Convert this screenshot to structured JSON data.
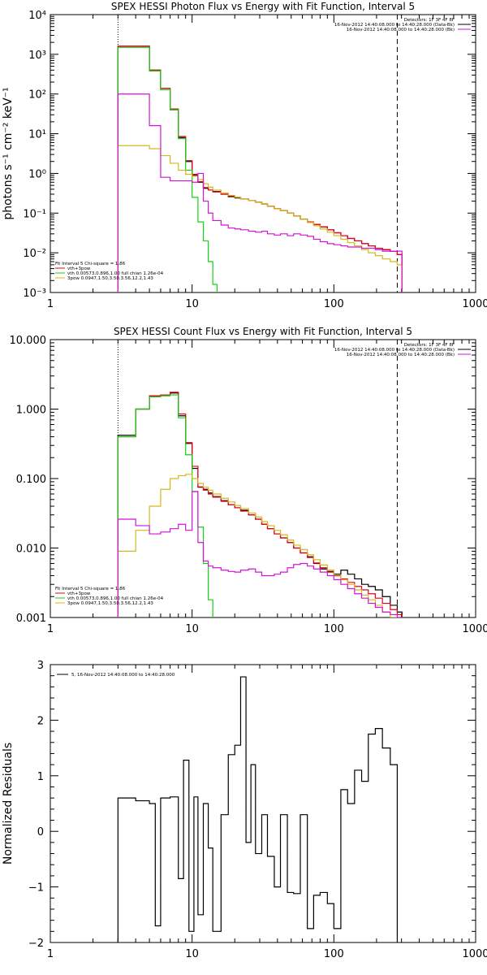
{
  "colors": {
    "black": "#000000",
    "red": "#e8001c",
    "green": "#15d215",
    "yellow": "#d6b81a",
    "magenta": "#d214d6"
  },
  "chart_data": [
    {
      "type": "line",
      "title": "SPEX HESSI Photon Flux vs Energy with Fit Function, Interval 5",
      "ylabel": "photons s⁻¹ cm⁻² keV⁻¹",
      "xlabel": "",
      "xscale": "log",
      "yscale": "log",
      "xlim": [
        1,
        1000
      ],
      "ylim": [
        0.001,
        10000
      ],
      "x_ticks": [
        "1",
        "10",
        "100",
        "1000"
      ],
      "y_ticks": [
        "10⁻³",
        "10⁻²",
        "10⁻¹",
        "10⁰",
        "10¹",
        "10²",
        "10³",
        "10⁴"
      ],
      "vlines": [
        {
          "x": 3,
          "style": "dotted"
        },
        {
          "x": 280,
          "style": "dashed"
        }
      ],
      "annotations_top_right": [
        "Detectors: 1F 3F 4F 8F",
        "16-Nov-2012 14:40:08.000 to 14:40:28.000 (Data-Bk)",
        "16-Nov-2012 14:40:08.000 to 14:40:28.000 (Bk)"
      ],
      "legend": {
        "position": "bottom-left",
        "header": "Fit Interval 5   Chi-square = 1.86",
        "entries": [
          {
            "label": "vth+3pow",
            "color": "#e8001c"
          },
          {
            "label": "vth 0.00573,0.896,1.00   full chian 1.26e-04",
            "color": "#15d215"
          },
          {
            "label": "3pow 0.0947,1.50,3.50,3.56,12.2,1.43",
            "color": "#d6b81a"
          }
        ]
      },
      "series": [
        {
          "name": "",
          "color": "#000000",
          "x": [
            3,
            4,
            5,
            6,
            7,
            8,
            9,
            10,
            11,
            12,
            13,
            14,
            16,
            18,
            20,
            22,
            25,
            28,
            31,
            34,
            38,
            42,
            47,
            52,
            58,
            65,
            72,
            80,
            90,
            100,
            112,
            125,
            140,
            157,
            175,
            196,
            220,
            250,
            280
          ],
          "y": [
            1600,
            1600,
            400,
            130,
            40,
            8,
            2.0,
            0.9,
            0.6,
            0.42,
            0.38,
            0.35,
            0.3,
            0.26,
            0.24,
            0.23,
            0.21,
            0.19,
            0.17,
            0.15,
            0.13,
            0.115,
            0.1,
            0.085,
            0.07,
            0.06,
            0.052,
            0.045,
            0.038,
            0.032,
            0.027,
            0.023,
            0.02,
            0.017,
            0.015,
            0.013,
            0.012,
            0.011,
            0.009
          ]
        },
        {
          "name": "vth+3pow",
          "color": "#e8001c",
          "x": [
            3,
            4,
            5,
            6,
            7,
            8,
            9,
            10,
            11,
            12,
            13,
            14,
            16,
            18,
            20,
            22,
            25,
            28,
            31,
            34,
            38,
            42,
            47,
            52,
            58,
            65,
            72,
            80,
            90,
            100,
            112,
            125,
            140,
            157,
            175,
            196,
            220,
            250,
            280
          ],
          "y": [
            1600,
            1600,
            400,
            140,
            42,
            8.5,
            2.1,
            0.95,
            0.62,
            0.44,
            0.38,
            0.34,
            0.3,
            0.27,
            0.25,
            0.23,
            0.21,
            0.19,
            0.17,
            0.15,
            0.13,
            0.115,
            0.1,
            0.085,
            0.07,
            0.06,
            0.052,
            0.045,
            0.038,
            0.032,
            0.027,
            0.023,
            0.02,
            0.017,
            0.015,
            0.013,
            0.012,
            0.011,
            0.009
          ]
        },
        {
          "name": "vth",
          "color": "#15d215",
          "x": [
            3,
            4,
            5,
            6,
            7,
            8,
            9,
            10,
            11,
            12,
            13,
            14,
            15
          ],
          "y": [
            1500,
            1500,
            380,
            130,
            40,
            7.5,
            1.2,
            0.25,
            0.06,
            0.02,
            0.006,
            0.0016,
            0.0007
          ]
        },
        {
          "name": "3pow",
          "color": "#d6b81a",
          "x": [
            3,
            4,
            5,
            6,
            7,
            8,
            9,
            10,
            11,
            12,
            13,
            14,
            16,
            18,
            20,
            22,
            25,
            28,
            31,
            34,
            38,
            42,
            47,
            52,
            58,
            65,
            72,
            80,
            90,
            100,
            112,
            125,
            140,
            157,
            175,
            196,
            220,
            250,
            280
          ],
          "y": [
            5,
            5,
            4.2,
            2.8,
            1.8,
            1.2,
            0.95,
            0.85,
            0.7,
            0.55,
            0.45,
            0.38,
            0.32,
            0.28,
            0.25,
            0.23,
            0.21,
            0.19,
            0.17,
            0.15,
            0.13,
            0.115,
            0.1,
            0.085,
            0.07,
            0.058,
            0.048,
            0.04,
            0.033,
            0.027,
            0.022,
            0.018,
            0.015,
            0.012,
            0.01,
            0.0085,
            0.007,
            0.006,
            0.005
          ]
        },
        {
          "name": "",
          "color": "#d214d6",
          "x": [
            3,
            4,
            5,
            6,
            7,
            8,
            9,
            10,
            11,
            12,
            13,
            14,
            16,
            18,
            20,
            22,
            25,
            28,
            31,
            34,
            38,
            42,
            47,
            52,
            58,
            65,
            72,
            80,
            90,
            100,
            112,
            125,
            140,
            157,
            175,
            196,
            220,
            250,
            280
          ],
          "y": [
            100,
            100,
            16,
            0.8,
            0.65,
            0.65,
            0.65,
            0.6,
            1.0,
            0.2,
            0.1,
            0.065,
            0.05,
            0.042,
            0.04,
            0.038,
            0.035,
            0.033,
            0.035,
            0.03,
            0.028,
            0.03,
            0.027,
            0.03,
            0.028,
            0.026,
            0.022,
            0.019,
            0.017,
            0.016,
            0.015,
            0.014,
            0.014,
            0.013,
            0.013,
            0.012,
            0.011,
            0.011,
            0.011
          ]
        }
      ]
    },
    {
      "type": "line",
      "title": "SPEX HESSI Count Flux vs Energy with Fit Function, Interval 5",
      "ylabel": "",
      "xlabel": "",
      "xscale": "log",
      "yscale": "log",
      "xlim": [
        1,
        1000
      ],
      "ylim": [
        0.001,
        10
      ],
      "x_ticks": [
        "1",
        "10",
        "100",
        "1000"
      ],
      "y_ticks": [
        "0.001",
        "0.010",
        "0.100",
        "1.000",
        "10.000"
      ],
      "vlines": [
        {
          "x": 3,
          "style": "dotted"
        },
        {
          "x": 280,
          "style": "dashed"
        }
      ],
      "annotations_top_right": [
        "Detectors: 1F 3F 4F 8F",
        "16-Nov-2012 14:40:08.000 to 14:40:28.000 (Data-Bk)",
        "16-Nov-2012 14:40:08.000 to 14:40:28.000 (Bk)"
      ],
      "legend": {
        "position": "bottom-left",
        "header": "Fit Interval 5   Chi-square = 1.86",
        "entries": [
          {
            "label": "vth+3pow",
            "color": "#e8001c"
          },
          {
            "label": "vth 0.00573,0.896,1.00   full chian 1.26e-04",
            "color": "#15d215"
          },
          {
            "label": "3pow 0.0947,1.50,3.50,3.56,12.2,1.43",
            "color": "#d6b81a"
          }
        ]
      },
      "series": [
        {
          "name": "",
          "color": "#000000",
          "x": [
            3,
            4,
            5,
            6,
            7,
            8,
            9,
            10,
            11,
            12,
            13,
            14,
            16,
            18,
            20,
            22,
            25,
            28,
            31,
            34,
            38,
            42,
            47,
            52,
            58,
            65,
            72,
            80,
            90,
            100,
            112,
            125,
            140,
            157,
            175,
            196,
            220,
            250,
            280
          ],
          "y": [
            0.42,
            1.0,
            1.55,
            1.6,
            1.7,
            0.8,
            0.32,
            0.14,
            0.075,
            0.07,
            0.062,
            0.055,
            0.048,
            0.042,
            0.038,
            0.035,
            0.03,
            0.026,
            0.022,
            0.019,
            0.016,
            0.014,
            0.012,
            0.01,
            0.0085,
            0.0075,
            0.006,
            0.005,
            0.0046,
            0.0042,
            0.0048,
            0.0042,
            0.0036,
            0.003,
            0.0028,
            0.0025,
            0.002,
            0.0015,
            0.0012
          ]
        },
        {
          "name": "vth+3pow",
          "color": "#e8001c",
          "x": [
            3,
            4,
            5,
            6,
            7,
            8,
            9,
            10,
            11,
            12,
            13,
            14,
            16,
            18,
            20,
            22,
            25,
            28,
            31,
            34,
            38,
            42,
            47,
            52,
            58,
            65,
            72,
            80,
            90,
            100,
            112,
            125,
            140,
            157,
            175,
            196,
            220,
            250,
            280
          ],
          "y": [
            0.4,
            1.0,
            1.55,
            1.6,
            1.75,
            0.85,
            0.33,
            0.15,
            0.076,
            0.068,
            0.06,
            0.054,
            0.047,
            0.042,
            0.038,
            0.034,
            0.03,
            0.026,
            0.022,
            0.019,
            0.016,
            0.014,
            0.012,
            0.01,
            0.0085,
            0.0073,
            0.0061,
            0.0052,
            0.0045,
            0.004,
            0.0036,
            0.0032,
            0.0028,
            0.0025,
            0.0022,
            0.0019,
            0.0016,
            0.0013,
            0.0011
          ]
        },
        {
          "name": "vth",
          "color": "#15d215",
          "x": [
            3,
            4,
            5,
            6,
            7,
            8,
            9,
            10,
            11,
            12,
            13,
            14
          ],
          "y": [
            0.4,
            1.0,
            1.5,
            1.55,
            1.6,
            0.75,
            0.22,
            0.065,
            0.02,
            0.006,
            0.0018,
            0.0007
          ]
        },
        {
          "name": "3pow",
          "color": "#d6b81a",
          "x": [
            3,
            4,
            5,
            6,
            7,
            8,
            9,
            10,
            11,
            12,
            13,
            14,
            16,
            18,
            20,
            22,
            25,
            28,
            31,
            34,
            38,
            42,
            47,
            52,
            58,
            65,
            72,
            80,
            90,
            100,
            112,
            125,
            140,
            157,
            175,
            196,
            220,
            250,
            280
          ],
          "y": [
            0.009,
            0.018,
            0.04,
            0.07,
            0.1,
            0.11,
            0.115,
            0.1,
            0.085,
            0.075,
            0.068,
            0.06,
            0.052,
            0.046,
            0.041,
            0.037,
            0.032,
            0.028,
            0.024,
            0.021,
            0.018,
            0.0155,
            0.013,
            0.011,
            0.0095,
            0.008,
            0.0068,
            0.0057,
            0.0048,
            0.0041,
            0.0035,
            0.003,
            0.0025,
            0.0021,
            0.0018,
            0.0015,
            0.0012,
            0.001,
            0.0009
          ]
        },
        {
          "name": "",
          "color": "#d214d6",
          "x": [
            3,
            4,
            5,
            6,
            7,
            8,
            9,
            10,
            11,
            12,
            13,
            14,
            16,
            18,
            20,
            22,
            25,
            28,
            31,
            34,
            38,
            42,
            47,
            52,
            58,
            65,
            72,
            80,
            90,
            100,
            112,
            125,
            140,
            157,
            175,
            196,
            220,
            250,
            280
          ],
          "y": [
            0.026,
            0.021,
            0.016,
            0.017,
            0.019,
            0.022,
            0.018,
            0.065,
            0.012,
            0.0065,
            0.0055,
            0.0052,
            0.0048,
            0.0046,
            0.0045,
            0.0048,
            0.005,
            0.0045,
            0.004,
            0.004,
            0.0042,
            0.0045,
            0.0052,
            0.0058,
            0.006,
            0.0055,
            0.005,
            0.0045,
            0.004,
            0.0035,
            0.003,
            0.0026,
            0.0022,
            0.0019,
            0.0016,
            0.0014,
            0.0012,
            0.0011,
            0.001
          ]
        }
      ]
    },
    {
      "type": "line",
      "title": "",
      "ylabel": "Normalized Residuals",
      "xlabel": "",
      "xscale": "log",
      "yscale": "linear",
      "xlim": [
        1,
        1000
      ],
      "ylim": [
        -2,
        3
      ],
      "x_ticks": [
        "1",
        "10",
        "100",
        "1000"
      ],
      "y_ticks": [
        "−2",
        "−1",
        "0",
        "1",
        "2",
        "3"
      ],
      "legend": {
        "position": "top-left",
        "entries": [
          {
            "label": "5, 16-Nov-2012 14:40:08.000 to 14:40:28.000",
            "color": "#000000"
          }
        ]
      },
      "series": [
        {
          "name": "5, 16-Nov-2012 14:40:08.000 to 14:40:28.000",
          "color": "#000000",
          "edges": [
            3,
            4,
            5,
            5.5,
            6,
            7,
            8,
            8.7,
            9.5,
            10.3,
            11,
            12,
            13,
            14,
            16,
            18,
            20,
            22,
            24,
            26,
            28,
            31,
            34,
            38,
            42,
            47,
            52,
            58,
            65,
            72,
            80,
            90,
            100,
            112,
            125,
            140,
            157,
            175,
            196,
            220,
            250,
            280
          ],
          "y": [
            0.6,
            0.55,
            0.5,
            -1.7,
            0.6,
            0.62,
            -0.85,
            1.28,
            -1.8,
            0.62,
            -1.5,
            0.5,
            -0.3,
            -1.8,
            0.3,
            1.38,
            1.55,
            2.78,
            -0.2,
            1.2,
            -0.4,
            0.3,
            -0.45,
            -1.0,
            0.3,
            -1.1,
            -1.12,
            0.3,
            -1.75,
            -1.15,
            -1.1,
            -1.3,
            -1.75,
            0.75,
            0.5,
            1.1,
            0.9,
            1.75,
            1.85,
            1.5,
            1.2
          ]
        }
      ]
    }
  ]
}
